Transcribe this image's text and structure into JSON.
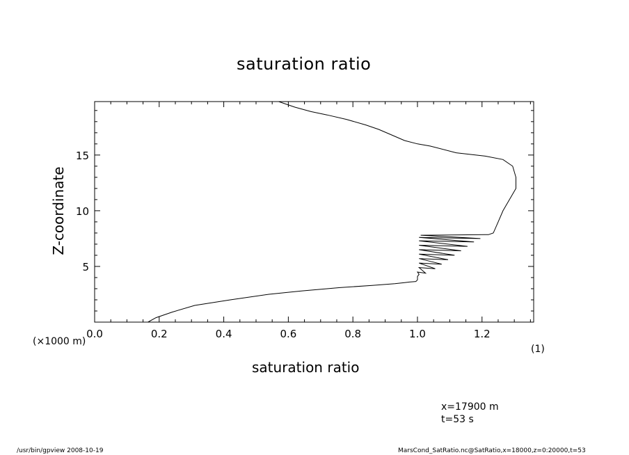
{
  "chart_data": {
    "type": "line",
    "title": "saturation ratio",
    "xlabel": "saturation ratio",
    "ylabel": "Z-coordinate",
    "x_unit_label": "(1)",
    "y_unit_label": "(×1000 m)",
    "xlim": [
      0.0,
      1.36
    ],
    "ylim": [
      0.0,
      19.8
    ],
    "x_ticks": [
      0.0,
      0.2,
      0.4,
      0.6,
      0.8,
      1.0,
      1.2
    ],
    "x_tick_labels": [
      "0.0",
      "0.2",
      "0.4",
      "0.6",
      "0.8",
      "1.0",
      "1.2"
    ],
    "y_ticks": [
      5,
      10,
      15
    ],
    "y_tick_labels": [
      "5",
      "10",
      "15"
    ],
    "grid": false,
    "series": [
      {
        "x": [
          0.165,
          0.19,
          0.24,
          0.31,
          0.42,
          0.54,
          0.64,
          0.76,
          0.86,
          0.93,
          0.96,
          0.975,
          0.995,
          1.0,
          1.0,
          1.005,
          1.0,
          1.025,
          1.005,
          1.055,
          1.005,
          1.075,
          1.005,
          1.095,
          1.005,
          1.115,
          1.005,
          1.135,
          1.005,
          1.155,
          1.005,
          1.175,
          1.005,
          1.195,
          1.01,
          1.21,
          1.22,
          1.235,
          1.25,
          1.265,
          1.285,
          1.305,
          1.305,
          1.295,
          1.265,
          1.21,
          1.12,
          1.04,
          1.0,
          0.96,
          0.92,
          0.88,
          0.84,
          0.78,
          0.72,
          0.67,
          0.62,
          0.57
        ],
        "y": [
          0.0,
          0.4,
          0.9,
          1.5,
          2.0,
          2.5,
          2.8,
          3.1,
          3.3,
          3.45,
          3.55,
          3.6,
          3.65,
          3.8,
          4.1,
          4.3,
          4.5,
          4.4,
          4.9,
          4.8,
          5.3,
          5.2,
          5.7,
          5.6,
          6.1,
          6.0,
          6.5,
          6.4,
          6.9,
          6.8,
          7.3,
          7.2,
          7.6,
          7.5,
          7.8,
          7.85,
          7.85,
          8.0,
          9.0,
          10.0,
          11.0,
          12.0,
          13.0,
          14.0,
          14.6,
          14.9,
          15.2,
          15.8,
          16.0,
          16.3,
          16.8,
          17.3,
          17.7,
          18.2,
          18.6,
          18.9,
          19.3,
          19.8
        ]
      }
    ]
  },
  "annotations": {
    "position_line": "x=17900 m",
    "time_line": "t=53 s"
  },
  "footer": {
    "left": "/usr/bin/gpview   2008-10-19",
    "right": "MarsCond_SatRatio.nc@SatRatio,x=18000,z=0:20000,t=53"
  }
}
